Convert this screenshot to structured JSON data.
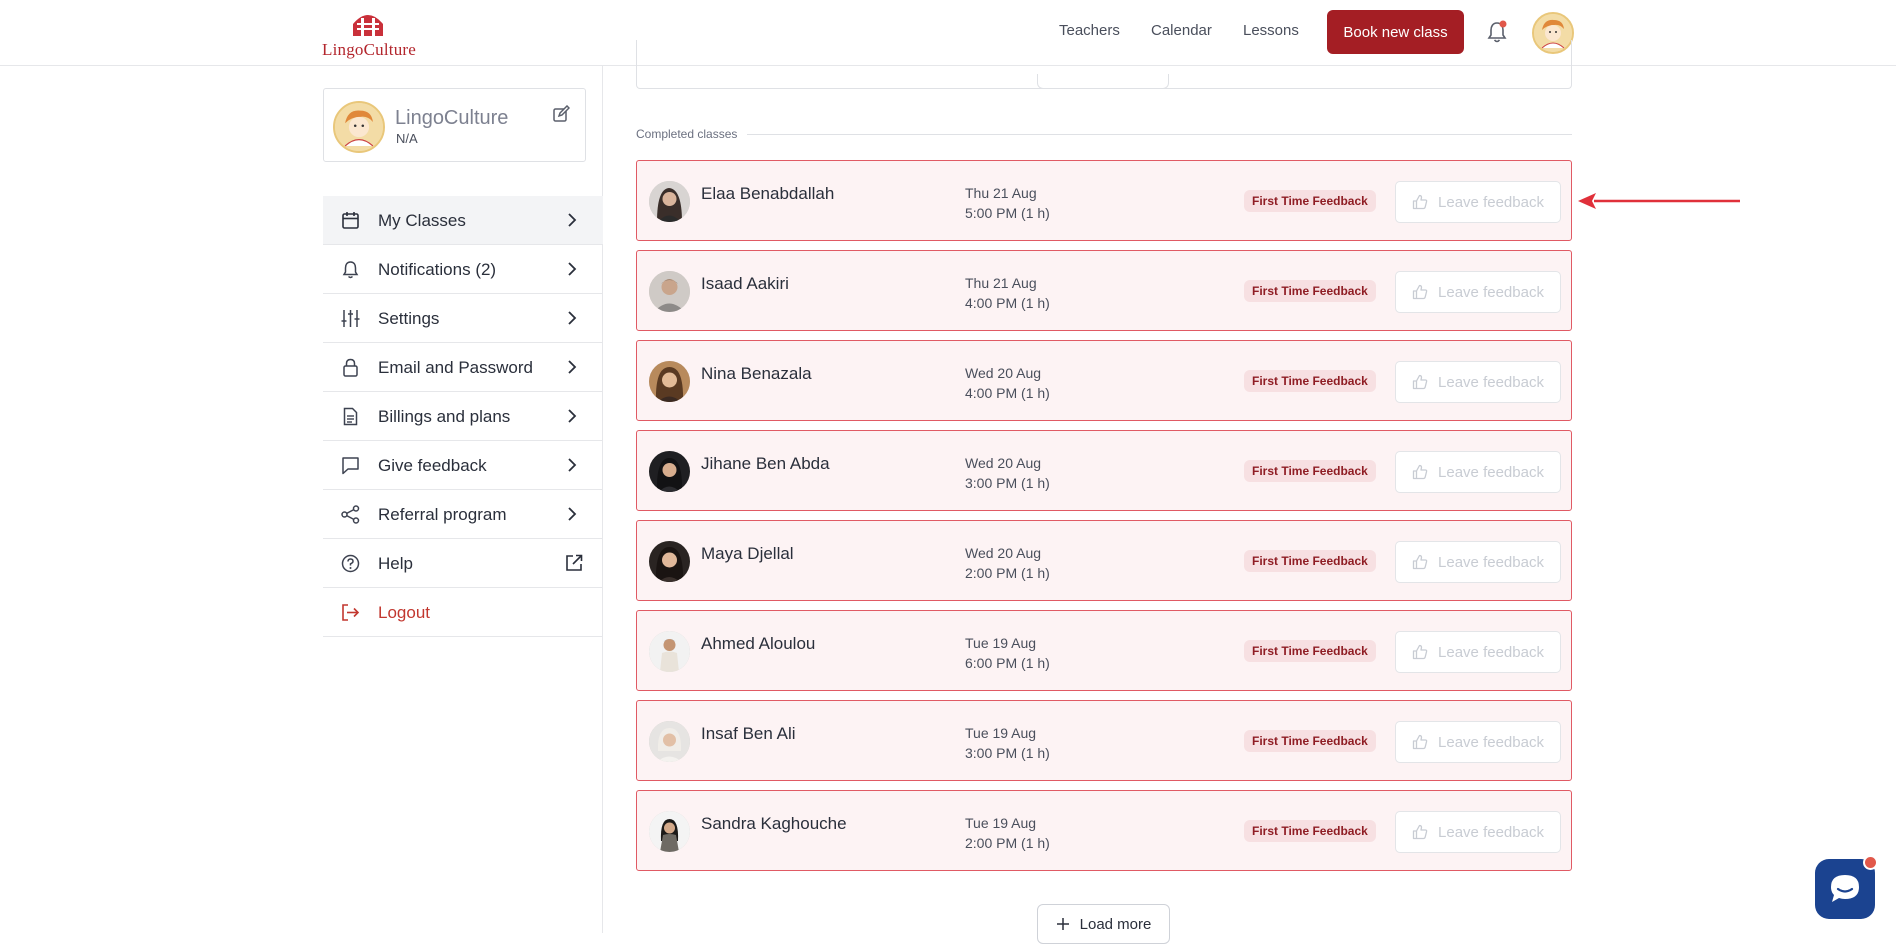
{
  "header": {
    "logo_text": "LingoCulture",
    "nav": [
      {
        "label": "Teachers"
      },
      {
        "label": "Calendar"
      },
      {
        "label": "Lessons"
      }
    ],
    "book_button": "Book new class",
    "colors": {
      "brand": "#a41e24"
    }
  },
  "sidebar": {
    "profile": {
      "name": "LingoCulture",
      "sub": "N/A"
    },
    "menu": [
      {
        "label": "My Classes",
        "icon": "calendar-icon"
      },
      {
        "label": "Notifications (2)",
        "icon": "bell-icon"
      },
      {
        "label": "Settings",
        "icon": "sliders-icon"
      },
      {
        "label": "Email and Password",
        "icon": "lock-icon"
      },
      {
        "label": "Billings and plans",
        "icon": "document-icon"
      },
      {
        "label": "Give feedback",
        "icon": "chat-bubble-icon"
      },
      {
        "label": "Referral program",
        "icon": "share-icon"
      },
      {
        "label": "Help",
        "icon": "help-icon"
      },
      {
        "label": "Logout",
        "icon": "logout-icon"
      }
    ]
  },
  "main": {
    "section_title": "Completed classes",
    "classes": [
      {
        "name": "Elaa Benabdallah",
        "date": "Thu 21 Aug",
        "time": "5:00 PM (1 h)",
        "badge": "First Time Feedback",
        "action": "Leave feedback"
      },
      {
        "name": "Isaad Aakiri",
        "date": "Thu 21 Aug",
        "time": "4:00 PM (1 h)",
        "badge": "First Time Feedback",
        "action": "Leave feedback"
      },
      {
        "name": "Nina Benazala",
        "date": "Wed 20 Aug",
        "time": "4:00 PM (1 h)",
        "badge": "First Time Feedback",
        "action": "Leave feedback"
      },
      {
        "name": "Jihane Ben Abda",
        "date": "Wed 20 Aug",
        "time": "3:00 PM (1 h)",
        "badge": "First Time Feedback",
        "action": "Leave feedback"
      },
      {
        "name": "Maya Djellal",
        "date": "Wed 20 Aug",
        "time": "2:00 PM (1 h)",
        "badge": "First Time Feedback",
        "action": "Leave feedback"
      },
      {
        "name": "Ahmed Aloulou",
        "date": "Tue 19 Aug",
        "time": "6:00 PM (1 h)",
        "badge": "First Time Feedback",
        "action": "Leave feedback"
      },
      {
        "name": "Insaf Ben Ali",
        "date": "Tue 19 Aug",
        "time": "3:00 PM (1 h)",
        "badge": "First Time Feedback",
        "action": "Leave feedback"
      },
      {
        "name": "Sandra Kaghouche",
        "date": "Tue 19 Aug",
        "time": "2:00 PM (1 h)",
        "badge": "First Time Feedback",
        "action": "Leave feedback"
      }
    ],
    "load_more": "Load more"
  }
}
